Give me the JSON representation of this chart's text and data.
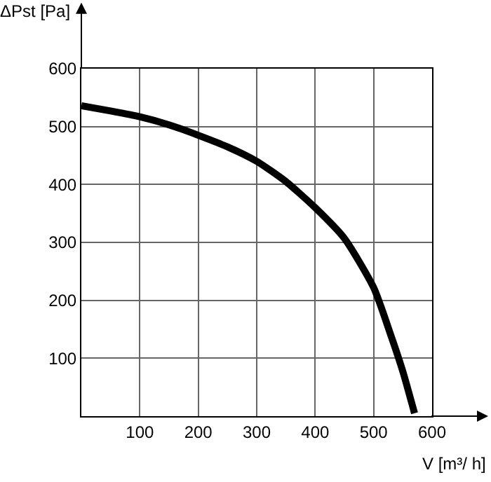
{
  "chart_data": {
    "type": "line",
    "xlabel": "V [m³/ h]",
    "ylabel": "ΔPst [Pa]",
    "x": [
      0,
      50,
      100,
      150,
      200,
      250,
      300,
      350,
      400,
      450,
      500,
      530,
      550,
      570
    ],
    "series": [
      {
        "color": "#000000",
        "values": [
          536,
          527,
          517,
          503,
          485,
          465,
          440,
          405,
          360,
          307,
          222,
          138,
          77,
          5
        ]
      }
    ],
    "xlim": [
      0,
      600
    ],
    "ylim": [
      0,
      600
    ],
    "xticks": [
      100,
      200,
      300,
      400,
      500,
      600
    ],
    "yticks": [
      100,
      200,
      300,
      400,
      500,
      600
    ],
    "grid": true,
    "marker": "none",
    "line_style": "solid"
  }
}
